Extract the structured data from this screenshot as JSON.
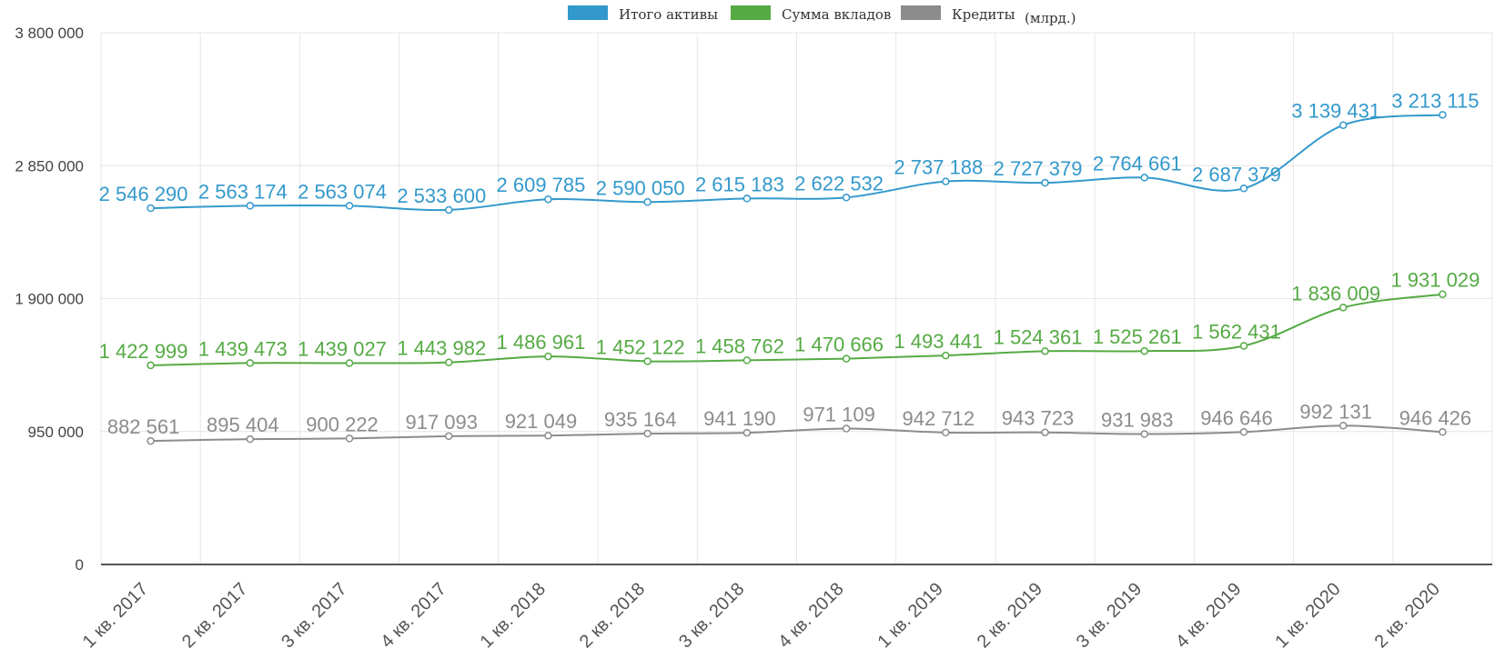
{
  "legend": {
    "items": [
      "Итого активы",
      "Сумма вкладов",
      "Кредиты"
    ],
    "note": "(млрд.)"
  },
  "chart_data": {
    "type": "line",
    "categories": [
      "1 кв. 2017",
      "2 кв. 2017",
      "3 кв. 2017",
      "4 кв. 2017",
      "1 кв. 2018",
      "2 кв. 2018",
      "3 кв. 2018",
      "4 кв. 2018",
      "1 кв. 2019",
      "2 кв. 2019",
      "3 кв. 2019",
      "4 кв. 2019",
      "1 кв. 2020",
      "2 кв. 2020"
    ],
    "series": [
      {
        "name": "Итого активы",
        "color": "#3399cc",
        "values": [
          2546290,
          2563174,
          2563074,
          2533600,
          2609785,
          2590050,
          2615183,
          2622532,
          2737188,
          2727379,
          2764661,
          2687379,
          3139431,
          3213115
        ],
        "labels": [
          "2 546 290",
          "2 563 174",
          "2 563 074",
          "2 533 600",
          "2 609 785",
          "2 590 050",
          "2 615 183",
          "2 622 532",
          "2 737 188",
          "2 727 379",
          "2 764 661",
          "2 687 379",
          "3 139 431",
          "3 213 115"
        ]
      },
      {
        "name": "Сумма вкладов",
        "color": "#55aa44",
        "values": [
          1422999,
          1439473,
          1439027,
          1443982,
          1486961,
          1452122,
          1458762,
          1470666,
          1493441,
          1524361,
          1525261,
          1562431,
          1836009,
          1931029
        ],
        "labels": [
          "1 422 999",
          "1 439 473",
          "1 439 027",
          "1 443 982",
          "1 486 961",
          "1 452 122",
          "1 458 762",
          "1 470 666",
          "1 493 441",
          "1 524 361",
          "1 525 261",
          "1 562 431",
          "1 836 009",
          "1 931 029"
        ]
      },
      {
        "name": "Кредиты",
        "color": "#8c8c8c",
        "values": [
          882561,
          895404,
          900222,
          917093,
          921049,
          935164,
          941190,
          971109,
          942712,
          943723,
          931983,
          946646,
          992131,
          946426
        ],
        "labels": [
          "882 561",
          "895 404",
          "900 222",
          "917 093",
          "921 049",
          "935 164",
          "941 190",
          "971 109",
          "942 712",
          "943 723",
          "931 983",
          "946 646",
          "992 131",
          "946 426"
        ]
      }
    ],
    "yticks": [
      0,
      950000,
      1900000,
      2850000,
      3800000
    ],
    "ytick_labels": [
      "0",
      "950 000",
      "1 900 000",
      "2 850 000",
      "3 800 000"
    ],
    "ylim": [
      0,
      3800000
    ],
    "grid": true,
    "legend_position": "top-center"
  }
}
